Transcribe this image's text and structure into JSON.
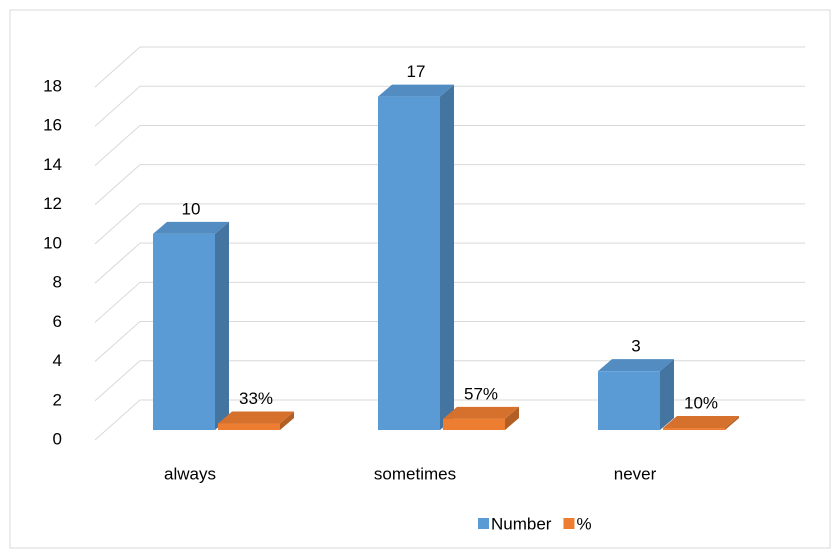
{
  "chart_data": {
    "type": "bar3d",
    "categories": [
      "always",
      "sometimes",
      "never"
    ],
    "series": [
      {
        "name": "Number",
        "color": "#5b9bd5",
        "values": [
          10,
          17,
          3
        ]
      },
      {
        "name": "%",
        "color": "#ed7d31",
        "values": [
          0.33,
          0.57,
          0.1
        ],
        "value_labels": [
          "33%",
          "57%",
          "10%"
        ]
      }
    ],
    "ylim": [
      0,
      18
    ],
    "yticks": [
      0,
      2,
      4,
      6,
      8,
      10,
      12,
      14,
      16,
      18
    ],
    "grid": true,
    "legend": "bottom"
  }
}
